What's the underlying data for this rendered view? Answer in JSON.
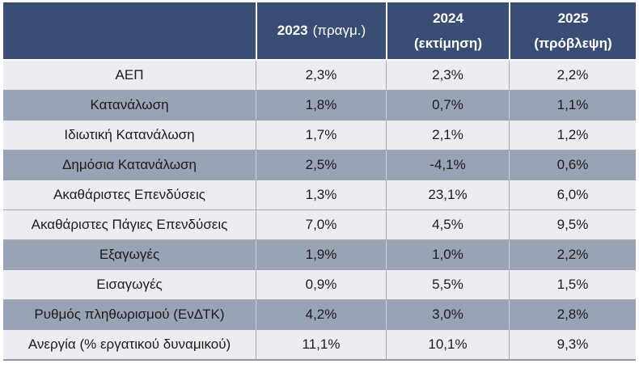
{
  "colors": {
    "page_bg": "#FFFFFF",
    "header_bg": "#3A4E74",
    "header_text": "#FFFFFF",
    "row_light_bg": "#ECEDF0",
    "row_gray_bg": "#99A3B6",
    "body_text": "#1C1C1C",
    "grid_light": "#A9ABB0",
    "grid_on_gray": "#C9CFDA",
    "table_bottom_border": "#8E99AF"
  },
  "table": {
    "header": {
      "label_col": "",
      "columns": [
        {
          "year": "2023",
          "note": "(πραγμ.)"
        },
        {
          "year": "2024",
          "note": "(εκτίμηση)"
        },
        {
          "year": "2025",
          "note": "(πρόβλεψη)"
        }
      ]
    },
    "rows": [
      {
        "label": "ΑΕΠ",
        "values": [
          "2,3%",
          "2,3%",
          "2,2%"
        ],
        "shade": "light"
      },
      {
        "label": "Κατανάλωση",
        "values": [
          "1,8%",
          "0,7%",
          "1,1%"
        ],
        "shade": "gray"
      },
      {
        "label": "Ιδιωτική Κατανάλωση",
        "values": [
          "1,7%",
          "2,1%",
          "1,2%"
        ],
        "shade": "light"
      },
      {
        "label": "Δημόσια Κατανάλωση",
        "values": [
          "2,5%",
          "-4,1%",
          "0,6%"
        ],
        "shade": "gray"
      },
      {
        "label": "Ακαθάριστες Επενδύσεις",
        "values": [
          "1,3%",
          "23,1%",
          "6,0%"
        ],
        "shade": "light"
      },
      {
        "label": "Ακαθάριστες Πάγιες Επενδύσεις",
        "values": [
          "7,0%",
          "4,5%",
          "9,5%"
        ],
        "shade": "light"
      },
      {
        "label": "Εξαγωγές",
        "values": [
          "1,9%",
          "1,0%",
          "2,2%"
        ],
        "shade": "gray"
      },
      {
        "label": "Εισαγωγές",
        "values": [
          "0,9%",
          "5,5%",
          "1,5%"
        ],
        "shade": "light"
      },
      {
        "label": "Ρυθμός πληθωρισμού (ΕνΔΤΚ)",
        "values": [
          "4,2%",
          "3,0%",
          "2,8%"
        ],
        "shade": "gray"
      },
      {
        "label": "Ανεργία (% εργατικού δυναμικού)",
        "values": [
          "11,1%",
          "10,1%",
          "9,3%"
        ],
        "shade": "light"
      }
    ]
  },
  "chart_data": {
    "type": "table",
    "title": "",
    "categories": [
      "ΑΕΠ",
      "Κατανάλωση",
      "Ιδιωτική Κατανάλωση",
      "Δημόσια Κατανάλωση",
      "Ακαθάριστες Επενδύσεις",
      "Ακαθάριστες Πάγιες Επενδύσεις",
      "Εξαγωγές",
      "Εισαγωγές",
      "Ρυθμός πληθωρισμού (ΕνΔΤΚ)",
      "Ανεργία (% εργατικού δυναμικού)"
    ],
    "series": [
      {
        "name": "2023 (πραγμ.)",
        "values": [
          2.3,
          1.8,
          1.7,
          2.5,
          1.3,
          7.0,
          1.9,
          0.9,
          4.2,
          11.1
        ]
      },
      {
        "name": "2024 (εκτίμηση)",
        "values": [
          2.3,
          0.7,
          2.1,
          -4.1,
          23.1,
          4.5,
          1.0,
          5.5,
          3.0,
          10.1
        ]
      },
      {
        "name": "2025 (πρόβλεψη)",
        "values": [
          2.2,
          1.1,
          1.2,
          0.6,
          6.0,
          9.5,
          2.2,
          1.5,
          2.8,
          9.3
        ]
      }
    ],
    "unit": "%"
  }
}
